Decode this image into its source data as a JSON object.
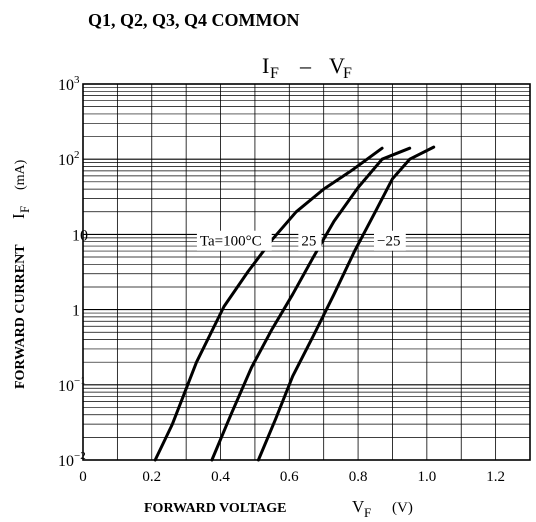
{
  "header": {
    "note": "Q1, Q2, Q3, Q4 COMMON",
    "title_main": "I",
    "title_main_sub": "F",
    "title_dash": "–",
    "title_second": "V",
    "title_second_sub": "F"
  },
  "chart_data": {
    "type": "line",
    "title": "IF – VF",
    "xlabel": "FORWARD VOLTAGE  VF  (V)",
    "ylabel": "FORWARD CURRENT  IF  (mA)",
    "xlim": [
      0,
      1.3
    ],
    "ylim": [
      0.01,
      1000
    ],
    "y_scale": "log",
    "grid": true,
    "x_ticks": [
      {
        "v": 0,
        "label": "0"
      },
      {
        "v": 0.2,
        "label": "0.2"
      },
      {
        "v": 0.4,
        "label": "0.4"
      },
      {
        "v": 0.6,
        "label": "0.6"
      },
      {
        "v": 0.8,
        "label": "0.8"
      },
      {
        "v": 1.0,
        "label": "1.0"
      },
      {
        "v": 1.2,
        "label": "1.2"
      }
    ],
    "y_ticks": [
      {
        "v": 0.01,
        "base": "10",
        "exp": "−2"
      },
      {
        "v": 0.1,
        "base": "10",
        "exp": "−1"
      },
      {
        "v": 1,
        "base": "1",
        "exp": ""
      },
      {
        "v": 10,
        "base": "10",
        "exp": ""
      },
      {
        "v": 100,
        "base": "10",
        "exp": "2"
      },
      {
        "v": 1000,
        "base": "10",
        "exp": "3"
      }
    ],
    "series": [
      {
        "name": "Ta=100°C",
        "points": [
          [
            0.21,
            0.01
          ],
          [
            0.26,
            0.03
          ],
          [
            0.33,
            0.2
          ],
          [
            0.41,
            1.1
          ],
          [
            0.48,
            3.2
          ],
          [
            0.55,
            8.5
          ],
          [
            0.62,
            20
          ],
          [
            0.7,
            40
          ],
          [
            0.78,
            70
          ],
          [
            0.87,
            140
          ]
        ]
      },
      {
        "name": "25",
        "points": [
          [
            0.375,
            0.01
          ],
          [
            0.43,
            0.04
          ],
          [
            0.49,
            0.17
          ],
          [
            0.55,
            0.55
          ],
          [
            0.61,
            1.6
          ],
          [
            0.67,
            5
          ],
          [
            0.73,
            15
          ],
          [
            0.8,
            42
          ],
          [
            0.87,
            100
          ],
          [
            0.95,
            140
          ]
        ]
      },
      {
        "name": "−25",
        "points": [
          [
            0.51,
            0.01
          ],
          [
            0.56,
            0.035
          ],
          [
            0.61,
            0.13
          ],
          [
            0.67,
            0.45
          ],
          [
            0.73,
            1.6
          ],
          [
            0.79,
            6
          ],
          [
            0.85,
            20
          ],
          [
            0.9,
            55
          ],
          [
            0.95,
            100
          ],
          [
            1.02,
            145
          ]
        ]
      }
    ],
    "labels": [
      {
        "text": "Ta=100°C",
        "v": 0.34,
        "i": 8.5
      },
      {
        "text": "25",
        "v": 0.635,
        "i": 8.5
      },
      {
        "text": "−25",
        "v": 0.855,
        "i": 8.5
      }
    ]
  },
  "axis": {
    "x_name": "FORWARD VOLTAGE",
    "x_sym": "V",
    "x_sym_sub": "F",
    "x_unit": "(V)",
    "y_name": "FORWARD CURRENT",
    "y_sym": "I",
    "y_sym_sub": "F",
    "y_unit": "(mA)"
  }
}
